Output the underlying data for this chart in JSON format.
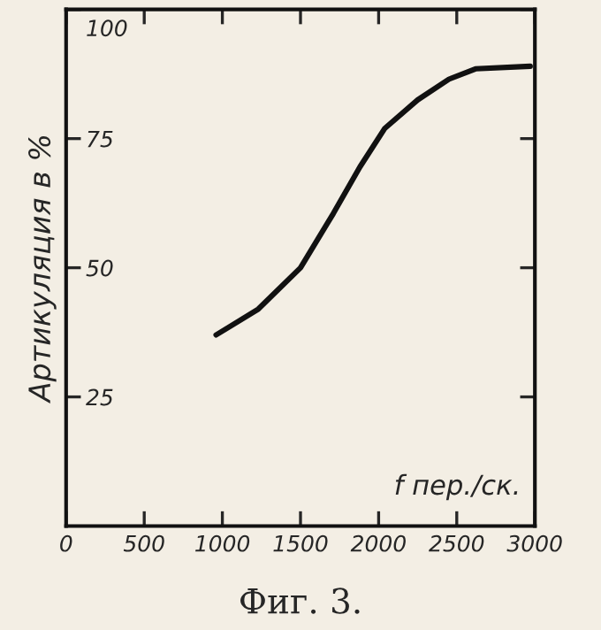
{
  "chart_data": {
    "type": "line",
    "xlabel": "f пер./ск.",
    "ylabel": "Артикуляция в %",
    "x": [
      960,
      1230,
      1500,
      1710,
      1880,
      2040,
      2250,
      2450,
      2620,
      2970
    ],
    "values": [
      37,
      42,
      50,
      60.5,
      69.5,
      77,
      82.5,
      86.5,
      88.5,
      89
    ],
    "color": "#111111",
    "xlim": [
      0,
      3000
    ],
    "xticks": [
      0,
      500,
      1000,
      1500,
      2000,
      2500,
      3000
    ],
    "ylim": [
      0,
      100
    ],
    "yticks": [
      25,
      50,
      75,
      100
    ],
    "grid": false,
    "marker": "none",
    "line_style": "solid",
    "annotations": [
      "Фиг. 3."
    ]
  }
}
